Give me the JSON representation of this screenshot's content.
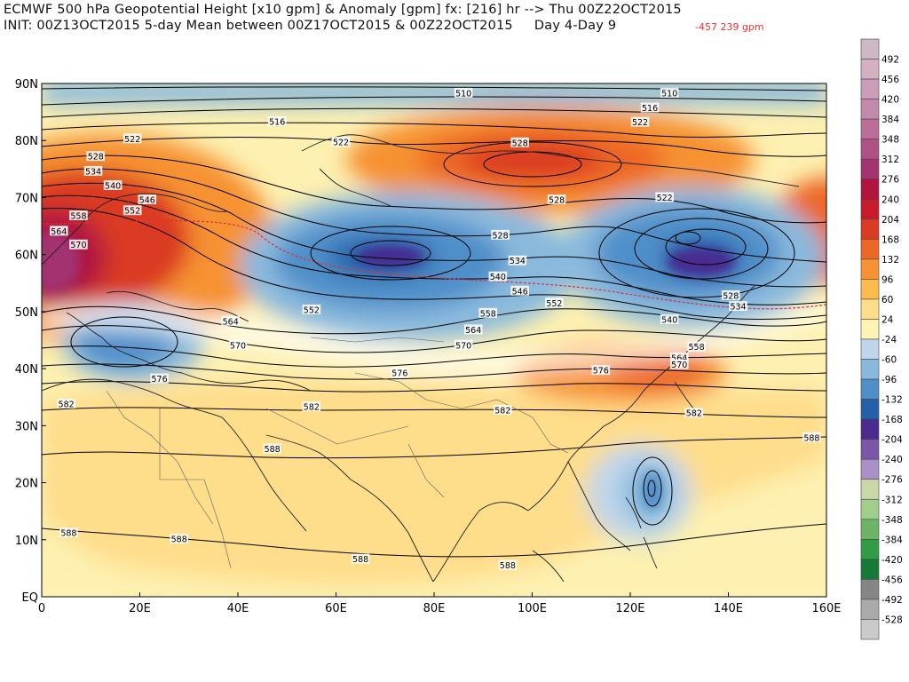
{
  "header": {
    "line1": "ECMWF 500 hPa Geopotential Height [x10 gpm] & Anomaly [gpm] fx: [216] hr --> Thu 00Z22OCT2015",
    "line2": "INIT: 00Z13OCT2015 5-day Mean between 00Z17OCT2015 & 00Z22OCT2015     Day 4-Day 9",
    "red_text": "-457 239 gpm"
  },
  "map": {
    "lon_ticks": [
      "0",
      "20E",
      "40E",
      "60E",
      "80E",
      "100E",
      "120E",
      "140E",
      "160E"
    ],
    "lat_ticks": [
      "90N",
      "80N",
      "70N",
      "60N",
      "50N",
      "40N",
      "30N",
      "20N",
      "10N",
      "EQ"
    ],
    "contour_labels": [
      {
        "t": "510",
        "lon": 86,
        "lat": 88.3
      },
      {
        "t": "510",
        "lon": 128,
        "lat": 88.3
      },
      {
        "t": "516",
        "lon": 48,
        "lat": 83.3
      },
      {
        "t": "516",
        "lon": 124,
        "lat": 85.7
      },
      {
        "t": "522",
        "lon": 122,
        "lat": 83.2
      },
      {
        "t": "522",
        "lon": 18.5,
        "lat": 80.3
      },
      {
        "t": "522",
        "lon": 61,
        "lat": 79.7
      },
      {
        "t": "528",
        "lon": 97.5,
        "lat": 79.6
      },
      {
        "t": "528",
        "lon": 11,
        "lat": 77.2
      },
      {
        "t": "534",
        "lon": 10.5,
        "lat": 74.6
      },
      {
        "t": "540",
        "lon": 14.5,
        "lat": 72.1
      },
      {
        "t": "546",
        "lon": 21.5,
        "lat": 69.6
      },
      {
        "t": "552",
        "lon": 18.5,
        "lat": 67.7
      },
      {
        "t": "558",
        "lon": 7.5,
        "lat": 66.8
      },
      {
        "t": "564",
        "lon": 3.5,
        "lat": 64.1
      },
      {
        "t": "570",
        "lon": 7.5,
        "lat": 61.7
      },
      {
        "t": "528",
        "lon": 105,
        "lat": 69.6
      },
      {
        "t": "522",
        "lon": 127,
        "lat": 70
      },
      {
        "t": "528",
        "lon": 93.5,
        "lat": 63.4
      },
      {
        "t": "534",
        "lon": 97,
        "lat": 58.9
      },
      {
        "t": "540",
        "lon": 93,
        "lat": 56.1
      },
      {
        "t": "546",
        "lon": 97.5,
        "lat": 53.6
      },
      {
        "t": "552",
        "lon": 55,
        "lat": 50.3
      },
      {
        "t": "552",
        "lon": 104.5,
        "lat": 51.5
      },
      {
        "t": "558",
        "lon": 91,
        "lat": 49.7
      },
      {
        "t": "564",
        "lon": 88,
        "lat": 46.8
      },
      {
        "t": "570",
        "lon": 86,
        "lat": 44.1
      },
      {
        "t": "528",
        "lon": 140.5,
        "lat": 52.8
      },
      {
        "t": "534",
        "lon": 142,
        "lat": 50.9
      },
      {
        "t": "540",
        "lon": 128,
        "lat": 48.6
      },
      {
        "t": "558",
        "lon": 133.5,
        "lat": 43.8
      },
      {
        "t": "564",
        "lon": 130,
        "lat": 41.9
      },
      {
        "t": "570",
        "lon": 130,
        "lat": 40.7
      },
      {
        "t": "576",
        "lon": 114,
        "lat": 39.7
      },
      {
        "t": "582",
        "lon": 133,
        "lat": 32.2
      },
      {
        "t": "582",
        "lon": 94,
        "lat": 32.7
      },
      {
        "t": "582",
        "lon": 55,
        "lat": 33.3
      },
      {
        "t": "582",
        "lon": 5,
        "lat": 33.8
      },
      {
        "t": "564",
        "lon": 38.5,
        "lat": 48.3
      },
      {
        "t": "570",
        "lon": 40,
        "lat": 44.1
      },
      {
        "t": "576",
        "lon": 24,
        "lat": 38.2
      },
      {
        "t": "576",
        "lon": 73,
        "lat": 39.2
      },
      {
        "t": "588",
        "lon": 47,
        "lat": 25.9
      },
      {
        "t": "588",
        "lon": 157,
        "lat": 27.9
      },
      {
        "t": "588",
        "lon": 5.5,
        "lat": 11.2
      },
      {
        "t": "588",
        "lon": 28,
        "lat": 10.1
      },
      {
        "t": "588",
        "lon": 65,
        "lat": 6.6
      },
      {
        "t": "588",
        "lon": 95,
        "lat": 5.5
      }
    ]
  },
  "colorbar": {
    "levels": [
      "492",
      "456",
      "420",
      "384",
      "348",
      "312",
      "276",
      "240",
      "204",
      "168",
      "132",
      "96",
      "60",
      "24",
      "-24",
      "-60",
      "-96",
      "-132",
      "-168",
      "-204",
      "-240",
      "-276",
      "-312",
      "-348",
      "-384",
      "-420",
      "-456",
      "-492",
      "-528"
    ],
    "colors": [
      "#ccb9c5",
      "#d4b0c3",
      "#cc9db6",
      "#c48aa9",
      "#bb6f98",
      "#b05186",
      "#a33371",
      "#b0143f",
      "#c81c2c",
      "#da3b24",
      "#ed6726",
      "#f69233",
      "#fbbb4f",
      "#fedd8b",
      "#fdf3b2",
      "#bfd6ea",
      "#89b9dd",
      "#4f8fc9",
      "#2460a8",
      "#4a2c91",
      "#7a56a8",
      "#a791c6",
      "#cad7a6",
      "#9fcf8b",
      "#6db565",
      "#329b46",
      "#147a35",
      "#858585",
      "#aaaaaa",
      "#cacaca"
    ],
    "colors_note": ""
  }
}
